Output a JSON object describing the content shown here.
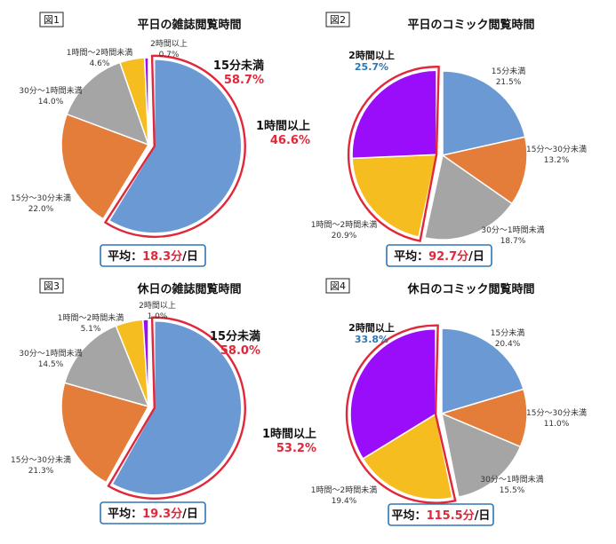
{
  "colors": {
    "s15": "#6a99d4",
    "s15_30": "#e37d39",
    "s30_60": "#a5a5a5",
    "s1_2": "#f5bd1f",
    "s2plus": "#9a0dfb",
    "highlight": "#e0283a",
    "label_blue": "#2e75b6"
  },
  "chart_data": [
    {
      "type": "pie",
      "fig_label": "図1",
      "title": "平日の雑誌閲覧時間",
      "average": {
        "prefix": "平均：",
        "value": "18.3分",
        "suffix": "/日"
      },
      "slices": [
        {
          "name": "15分未満",
          "value": 58.7,
          "pct": "58.7%"
        },
        {
          "name": "15分～30分未満",
          "value": 22.0,
          "pct": "22.0%"
        },
        {
          "name": "30分～1時間未満",
          "value": 14.0,
          "pct": "14.0%"
        },
        {
          "name": "1時間～2時間未満",
          "value": 4.6,
          "pct": "4.6%"
        },
        {
          "name": "2時間以上",
          "value": 0.7,
          "pct": "0.7%"
        }
      ],
      "highlight": {
        "slices": [
          0
        ],
        "label": "15分未満",
        "pct": "58.7%"
      }
    },
    {
      "type": "pie",
      "fig_label": "図2",
      "title": "平日のコミック閲覧時間",
      "average": {
        "prefix": "平均：",
        "value": "92.7分",
        "suffix": "/日"
      },
      "slices": [
        {
          "name": "15分未満",
          "value": 21.5,
          "pct": "21.5%"
        },
        {
          "name": "15分～30分未満",
          "value": 13.2,
          "pct": "13.2%"
        },
        {
          "name": "30分～1時間未満",
          "value": 18.7,
          "pct": "18.7%"
        },
        {
          "name": "1時間～2時間未満",
          "value": 20.9,
          "pct": "20.9%"
        },
        {
          "name": "2時間以上",
          "value": 25.7,
          "pct": "25.7%"
        }
      ],
      "highlight": {
        "slices": [
          3,
          4
        ],
        "label": "1時間以上",
        "pct": "46.6%"
      }
    },
    {
      "type": "pie",
      "fig_label": "図3",
      "title": "休日の雑誌閲覧時間",
      "average": {
        "prefix": "平均：",
        "value": "19.3分",
        "suffix": "/日"
      },
      "slices": [
        {
          "name": "15分未満",
          "value": 58.0,
          "pct": "58.0%"
        },
        {
          "name": "15分～30分未満",
          "value": 21.3,
          "pct": "21.3%"
        },
        {
          "name": "30分～1時間未満",
          "value": 14.5,
          "pct": "14.5%"
        },
        {
          "name": "1時間～2時間未満",
          "value": 5.1,
          "pct": "5.1%"
        },
        {
          "name": "2時間以上",
          "value": 1.0,
          "pct": "1.0%"
        }
      ],
      "highlight": {
        "slices": [
          0
        ],
        "label": "15分未満",
        "pct": "58.0%"
      }
    },
    {
      "type": "pie",
      "fig_label": "図4",
      "title": "休日のコミック閲覧時間",
      "average": {
        "prefix": "平均：",
        "value": "115.5分",
        "suffix": "/日"
      },
      "slices": [
        {
          "name": "15分未満",
          "value": 20.4,
          "pct": "20.4%"
        },
        {
          "name": "15分～30分未満",
          "value": 11.0,
          "pct": "11.0%"
        },
        {
          "name": "30分～1時間未満",
          "value": 15.5,
          "pct": "15.5%"
        },
        {
          "name": "1時間～2時間未満",
          "value": 19.4,
          "pct": "19.4%"
        },
        {
          "name": "2時間以上",
          "value": 33.8,
          "pct": "33.8%"
        }
      ],
      "highlight": {
        "slices": [
          3,
          4
        ],
        "label": "1時間以上",
        "pct": "53.2%"
      }
    }
  ]
}
